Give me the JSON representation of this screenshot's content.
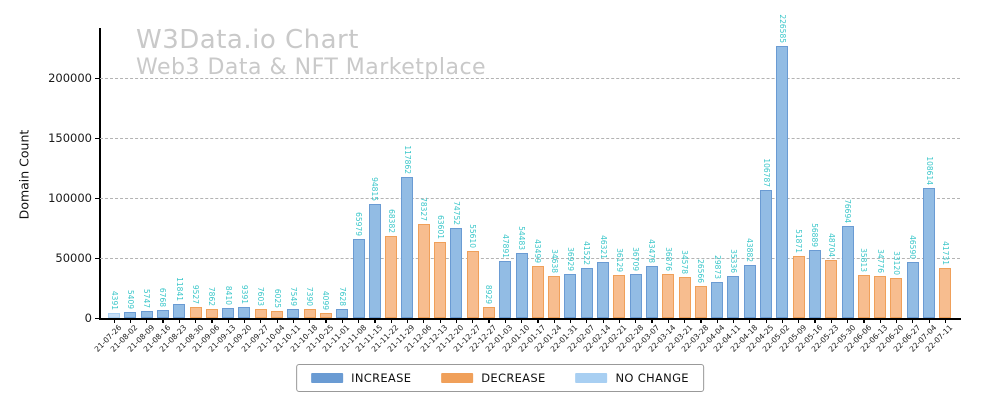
{
  "title": "W3Data.io Chart",
  "subtitle": "Web3 Data & NFT Marketplace",
  "ylabel": "Domain Count",
  "legend": [
    {
      "label": "INCREASE",
      "key": "increase",
      "color": "#6a9bd3"
    },
    {
      "label": "DECREASE",
      "key": "decrease",
      "color": "#f0a05a"
    },
    {
      "label": "NO CHANGE",
      "key": "no_change",
      "color": "#a8cff2"
    }
  ],
  "colors": {
    "increase_fill": "#92bce4",
    "increase_edge": "#6a9bd3",
    "decrease_fill": "#f7bd8f",
    "decrease_edge": "#f0a05a",
    "no_change_fill": "#c6def7",
    "no_change_edge": "#a8cff2",
    "value_label": "#3cc7ca",
    "grid": "#b3b3b3",
    "axis": "#000000",
    "tick_label": "#1a1a1a",
    "watermark": "#c9c9c9"
  },
  "chart_data": {
    "type": "bar",
    "title": "W3Data.io Chart",
    "subtitle": "Web3 Data & NFT Marketplace",
    "xlabel": "",
    "ylabel": "Domain Count",
    "ylim": [
      0,
      245000
    ],
    "yticks": [
      0,
      50000,
      100000,
      150000,
      200000
    ],
    "grid": true,
    "legend_position": "bottom-center",
    "legend_entries": [
      "INCREASE",
      "DECREASE",
      "NO CHANGE"
    ],
    "categories": [
      "21-07-26",
      "21-08-02",
      "21-08-09",
      "21-08-16",
      "21-08-23",
      "21-08-30",
      "21-09-06",
      "21-09-13",
      "21-09-20",
      "21-09-27",
      "21-10-04",
      "21-10-11",
      "21-10-18",
      "21-10-25",
      "21-11-01",
      "21-11-08",
      "21-11-15",
      "21-11-22",
      "21-11-29",
      "21-12-06",
      "21-12-13",
      "21-12-20",
      "21-12-27",
      "22-12-27",
      "22-01-03",
      "22-01-10",
      "22-01-17",
      "22-01-24",
      "22-01-31",
      "22-02-07",
      "22-02-14",
      "22-02-21",
      "22-02-28",
      "22-03-07",
      "22-03-14",
      "22-03-21",
      "22-03-28",
      "22-04-04",
      "22-04-11",
      "22-04-18",
      "22-04-25",
      "22-05-02",
      "22-05-09",
      "22-05-16",
      "22-05-23",
      "22-05-30",
      "22-06-06",
      "22-06-13",
      "22-06-20",
      "22-06-27",
      "22-07-04",
      "22-07-11"
    ],
    "values": [
      4391,
      5409,
      5747,
      6768,
      11841,
      9527,
      7862,
      8410,
      9391,
      7603,
      6025,
      7549,
      7390,
      4099,
      7628,
      65979,
      94815,
      68382,
      117862,
      78327,
      63601,
      74752,
      55610,
      8929,
      47891,
      54483,
      43499,
      34638,
      36929,
      41522,
      46321,
      36129,
      36709,
      43478,
      36876,
      34578,
      26566,
      29873,
      35336,
      43882,
      106787,
      226585,
      51871,
      56889,
      48704,
      76694,
      35813,
      34776,
      33120,
      46590,
      108614,
      41731
    ],
    "changes": [
      "no_change",
      "increase",
      "increase",
      "increase",
      "increase",
      "decrease",
      "decrease",
      "increase",
      "increase",
      "decrease",
      "decrease",
      "increase",
      "decrease",
      "decrease",
      "increase",
      "increase",
      "increase",
      "decrease",
      "increase",
      "decrease",
      "decrease",
      "increase",
      "decrease",
      "decrease",
      "increase",
      "increase",
      "decrease",
      "decrease",
      "increase",
      "increase",
      "increase",
      "decrease",
      "increase",
      "increase",
      "decrease",
      "decrease",
      "decrease",
      "increase",
      "increase",
      "increase",
      "increase",
      "increase",
      "decrease",
      "increase",
      "decrease",
      "increase",
      "decrease",
      "decrease",
      "decrease",
      "increase",
      "increase",
      "decrease"
    ]
  }
}
